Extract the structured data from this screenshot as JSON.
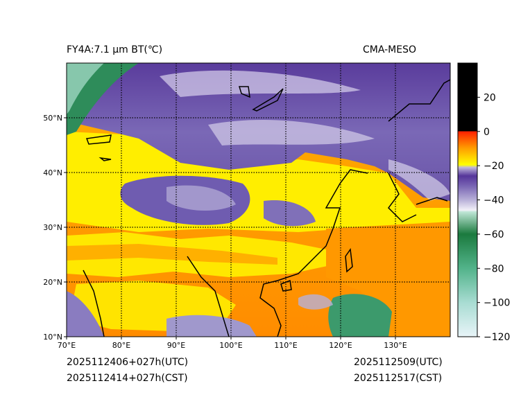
{
  "header": {
    "title_left": "FY4A:7.1 µm BT(℃)",
    "title_right": "CMA-MESO"
  },
  "footer": {
    "init_utc": "2025112406+027h(UTC)",
    "init_cst": "2025112414+027h(CST)",
    "valid_utc": "2025112509(UTC)",
    "valid_cst": "2025112517(CST)"
  },
  "map": {
    "lon_range": [
      70,
      140
    ],
    "lat_range": [
      10,
      60
    ],
    "lon_ticks": [
      70,
      80,
      90,
      100,
      110,
      120,
      130
    ],
    "lon_labels": [
      "70°E",
      "80°E",
      "90°E",
      "100°E",
      "110°E",
      "120°E",
      "130°E"
    ],
    "lat_ticks": [
      10,
      20,
      30,
      40,
      50
    ],
    "lat_labels": [
      "10°N",
      "20°N",
      "30°N",
      "40°N",
      "50°N"
    ],
    "gridlines": "dotted"
  },
  "colorbar": {
    "range": [
      -120,
      40
    ],
    "ticks": [
      20,
      0,
      -20,
      -40,
      -60,
      -80,
      -100,
      -120
    ],
    "tick_labels": [
      "20",
      "0",
      "−20",
      "−40",
      "−60",
      "−80",
      "−100",
      "−120"
    ],
    "stops": [
      {
        "value": 40,
        "color": "#000000"
      },
      {
        "value": 0.01,
        "color": "#000000"
      },
      {
        "value": 0,
        "color": "#ff2000"
      },
      {
        "value": -10,
        "color": "#ffa000"
      },
      {
        "value": -19.5,
        "color": "#ffff00"
      },
      {
        "value": -21,
        "color": "#c0b8dc"
      },
      {
        "value": -26,
        "color": "#55359a"
      },
      {
        "value": -32,
        "color": "#7a66b4"
      },
      {
        "value": -40,
        "color": "#b8b0d8"
      },
      {
        "value": -46,
        "color": "#f2f0f8"
      },
      {
        "value": -47,
        "color": "#bfe6d6"
      },
      {
        "value": -60,
        "color": "#1b7a3e"
      },
      {
        "value": -80,
        "color": "#52b38a"
      },
      {
        "value": -100,
        "color": "#a8dcd2"
      },
      {
        "value": -120,
        "color": "#e8f4f8"
      }
    ]
  }
}
